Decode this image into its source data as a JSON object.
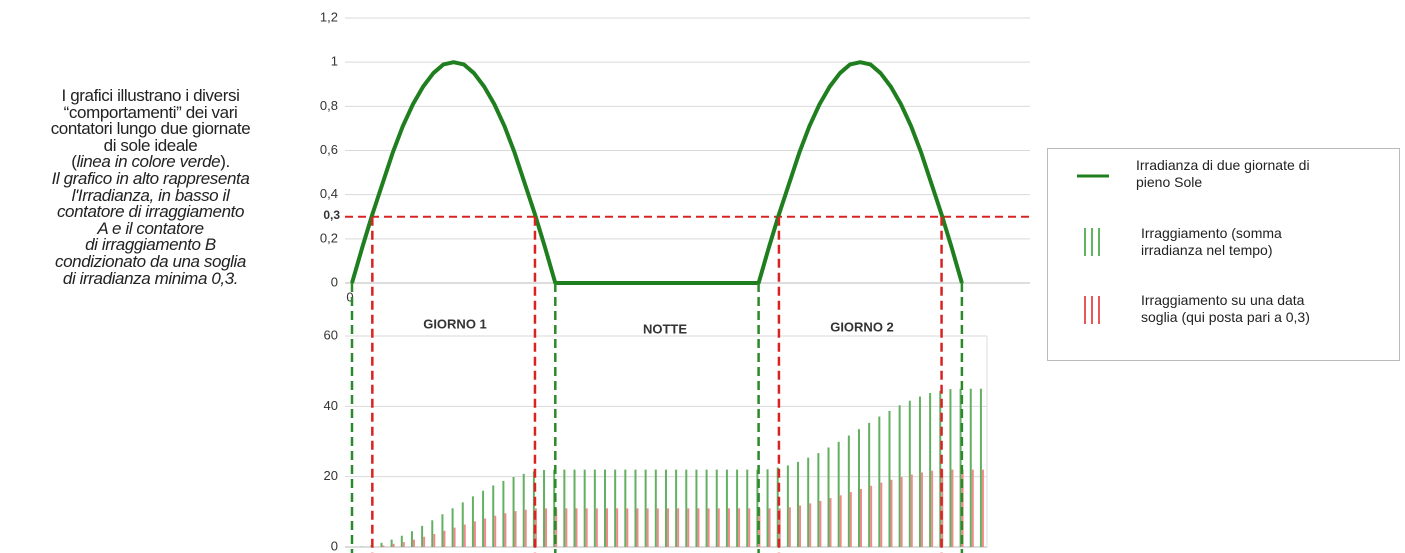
{
  "description": [
    [
      {
        "text": "I grafici illustrano i diversi",
        "italic": false
      }
    ],
    [
      {
        "text": "“comportamenti” dei vari",
        "italic": false
      }
    ],
    [
      {
        "text": "contatori lungo due giornate",
        "italic": false
      }
    ],
    [
      {
        "text": "di sole ideale",
        "italic": false
      }
    ],
    [
      {
        "text": "(",
        "italic": false
      },
      {
        "text": "linea in colore verde",
        "italic": true
      },
      {
        "text": ").",
        "italic": false
      }
    ],
    [
      {
        "text": "Il grafico in alto rappresenta",
        "italic": true
      }
    ],
    [
      {
        "text": "l'Irradianza, in basso il",
        "italic": true
      }
    ],
    [
      {
        "text": "contatore di irraggiamento",
        "italic": true
      }
    ],
    [
      {
        "text": "A e il contatore",
        "italic": true
      }
    ],
    [
      {
        "text": "di irraggiamento B",
        "italic": true
      }
    ],
    [
      {
        "text": "condizionato da una soglia",
        "italic": true
      }
    ],
    [
      {
        "text": "di irradianza minima 0,3.",
        "italic": true
      }
    ]
  ],
  "chart_data": [
    {
      "type": "line",
      "xlim": [
        0,
        66.7
      ],
      "xticks": [
        0
      ],
      "ylim": [
        0,
        1.2
      ],
      "yticks": [
        0,
        {
          "value": 0.2,
          "label": "0,2"
        },
        {
          "value": 0.4,
          "label": "0,4"
        },
        {
          "value": 0.6,
          "label": "0,6"
        },
        {
          "value": 0.8,
          "label": "0,8"
        },
        1,
        {
          "value": 1.2,
          "label": "1,2"
        }
      ],
      "grid": true,
      "series": [
        {
          "name": "Irradianza di due giornate di\npieno Sole",
          "color": "#1f7f1f",
          "x": [
            0,
            1,
            2,
            3,
            4,
            5,
            6,
            7,
            8,
            9,
            10,
            11,
            12,
            13,
            14,
            15,
            16,
            17,
            18,
            19,
            20,
            40,
            41,
            42,
            43,
            44,
            45,
            46,
            47,
            48,
            49,
            50,
            51,
            52,
            53,
            54,
            55,
            56,
            57,
            58,
            59,
            60
          ],
          "values": [
            0,
            0.16,
            0.31,
            0.45,
            0.59,
            0.71,
            0.81,
            0.89,
            0.95,
            0.99,
            1,
            0.99,
            0.95,
            0.89,
            0.81,
            0.71,
            0.59,
            0.45,
            0.31,
            0.16,
            0,
            0,
            0.16,
            0.31,
            0.45,
            0.59,
            0.71,
            0.81,
            0.89,
            0.95,
            0.99,
            1,
            0.99,
            0.95,
            0.89,
            0.81,
            0.71,
            0.59,
            0.45,
            0.31,
            0.16,
            0
          ]
        }
      ],
      "threshold": {
        "value": 0.3,
        "label": "0,3",
        "color": "#d92323"
      },
      "vlines": {
        "green": [
          0,
          20,
          40,
          60
        ],
        "red": [
          2,
          18,
          42,
          58
        ],
        "green_color": "#2a8a2a",
        "red_color": "#d92323"
      },
      "annotations": [
        "GIORNO 1",
        "NOTTE",
        "GIORNO 2"
      ]
    },
    {
      "type": "bar",
      "xlim": [
        0,
        62.5
      ],
      "ylim": [
        0,
        60
      ],
      "yticks": [
        0,
        20,
        40,
        60
      ],
      "grid": true,
      "x": [
        0,
        1,
        2,
        3,
        4,
        5,
        6,
        7,
        8,
        9,
        10,
        11,
        12,
        13,
        14,
        15,
        16,
        17,
        18,
        19,
        20,
        21,
        22,
        23,
        24,
        25,
        26,
        27,
        28,
        29,
        30,
        31,
        32,
        33,
        34,
        35,
        36,
        37,
        38,
        39,
        40,
        41,
        42,
        43,
        44,
        45,
        46,
        47,
        48,
        49,
        50,
        51,
        52,
        53,
        54,
        55,
        56,
        57,
        58,
        59,
        60,
        61,
        62
      ],
      "series": [
        {
          "name": "Irraggiamento  (somma\nirradianza nel tempo)",
          "color": "#63b063",
          "values": [
            0,
            0.1,
            0.5,
            1.2,
            2.1,
            3.2,
            4.5,
            6.0,
            7.6,
            9.3,
            11.0,
            12.7,
            14.4,
            16.0,
            17.5,
            18.8,
            19.9,
            20.8,
            21.5,
            21.9,
            22,
            22,
            22,
            22,
            22,
            22,
            22,
            22,
            22,
            22,
            22,
            22,
            22,
            22,
            22,
            22,
            22,
            22,
            22,
            22,
            22,
            22.1,
            22.6,
            23.2,
            24.2,
            25.4,
            26.7,
            28.3,
            29.9,
            31.7,
            33.5,
            35.3,
            37.1,
            38.7,
            40.3,
            41.6,
            42.8,
            43.8,
            44.4,
            44.9,
            45,
            45,
            45
          ]
        },
        {
          "name": "Irraggiamento su una data\nsoglia (qui posta pari a 0,3)",
          "color": "#f08a8a",
          "values": [
            0,
            0,
            0,
            0.4,
            0.9,
            1.4,
            2.1,
            2.9,
            3.7,
            4.6,
            5.5,
            6.4,
            7.3,
            8.1,
            8.9,
            9.6,
            10.2,
            10.6,
            11.0,
            11,
            11,
            11,
            11,
            11,
            11,
            11,
            11,
            11,
            11,
            11,
            11,
            11,
            11,
            11,
            11,
            11,
            11,
            11,
            11,
            11,
            11,
            11,
            11,
            11.3,
            11.8,
            12.4,
            13.1,
            13.9,
            14.7,
            15.6,
            16.5,
            17.4,
            18.3,
            19.1,
            19.9,
            20.6,
            21.2,
            21.7,
            22.0,
            22,
            22,
            22,
            22
          ]
        }
      ]
    }
  ]
}
